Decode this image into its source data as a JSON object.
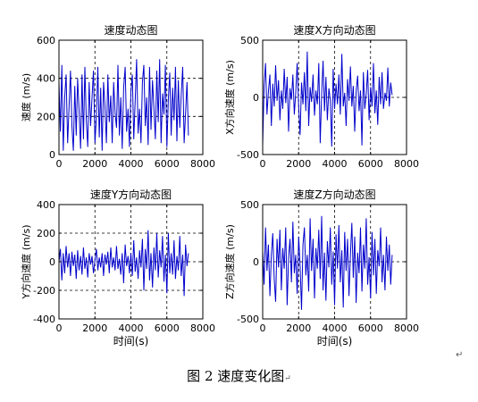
{
  "caption": "图 2  速度变化图",
  "caption_mark": "↵",
  "stray_mark": "↵",
  "chart_data": [
    {
      "type": "line",
      "title": "速度动态图",
      "xlabel": "",
      "ylabel": "速度 (m/s)",
      "xlim": [
        0,
        8000
      ],
      "ylim": [
        0,
        600
      ],
      "xticks": [
        0,
        2000,
        4000,
        6000,
        8000
      ],
      "yticks": [
        0,
        200,
        400,
        600
      ],
      "grid": true,
      "line_color": "#0000cc",
      "series": [
        {
          "x": [
            0,
            80,
            160,
            240,
            320,
            400,
            480,
            560,
            640,
            720,
            800,
            880,
            960,
            1040,
            1120,
            1200,
            1280,
            1360,
            1440,
            1520,
            1600,
            1680,
            1760,
            1840,
            1920,
            2000,
            2080,
            2160,
            2240,
            2320,
            2400,
            2480,
            2560,
            2640,
            2720,
            2800,
            2880,
            2960,
            3040,
            3120,
            3200,
            3280,
            3360,
            3440,
            3520,
            3600,
            3680,
            3760,
            3840,
            3920,
            4000,
            4080,
            4160,
            4240,
            4320,
            4400,
            4480,
            4560,
            4640,
            4720,
            4800,
            4880,
            4960,
            5040,
            5120,
            5200,
            5280,
            5360,
            5440,
            5520,
            5600,
            5680,
            5760,
            5840,
            5920,
            6000,
            6080,
            6160,
            6240,
            6320,
            6400,
            6480,
            6560,
            6640,
            6720,
            6800,
            6880,
            6960,
            7040,
            7120,
            7200
          ],
          "values": [
            380,
            120,
            470,
            20,
            300,
            420,
            60,
            250,
            440,
            150,
            20,
            360,
            100,
            400,
            230,
            30,
            420,
            80,
            460,
            180,
            40,
            380,
            150,
            300,
            440,
            60,
            200,
            460,
            90,
            350,
            20,
            380,
            250,
            60,
            420,
            170,
            310,
            60,
            380,
            220,
            140,
            470,
            100,
            300,
            30,
            350,
            460,
            120,
            240,
            40,
            330,
            420,
            80,
            280,
            500,
            110,
            240,
            60,
            380,
            470,
            150,
            300,
            50,
            460,
            130,
            390,
            240,
            80,
            440,
            170,
            500,
            60,
            320,
            210,
            470,
            40,
            290,
            430,
            100,
            350,
            180,
            460,
            70,
            390,
            140,
            310,
            460,
            60,
            220,
            380,
            100
          ]
        }
      ]
    },
    {
      "type": "line",
      "title": "速度X方向动态图",
      "xlabel": "",
      "ylabel": "X方向速度 (m/s)",
      "xlim": [
        0,
        8000
      ],
      "ylim": [
        -500,
        500
      ],
      "xticks": [
        0,
        2000,
        4000,
        6000,
        8000
      ],
      "yticks": [
        -500,
        0,
        500
      ],
      "grid": true,
      "line_color": "#0000cc",
      "series": [
        {
          "x": [
            0,
            80,
            160,
            240,
            320,
            400,
            480,
            560,
            640,
            720,
            800,
            880,
            960,
            1040,
            1120,
            1200,
            1280,
            1360,
            1440,
            1520,
            1600,
            1680,
            1760,
            1840,
            1920,
            2000,
            2080,
            2160,
            2240,
            2320,
            2400,
            2480,
            2560,
            2640,
            2720,
            2800,
            2880,
            2960,
            3040,
            3120,
            3200,
            3280,
            3360,
            3440,
            3520,
            3600,
            3680,
            3760,
            3840,
            3920,
            4000,
            4080,
            4160,
            4240,
            4320,
            4400,
            4480,
            4560,
            4640,
            4720,
            4800,
            4880,
            4960,
            5040,
            5120,
            5200,
            5280,
            5360,
            5440,
            5520,
            5600,
            5680,
            5760,
            5840,
            5920,
            6000,
            6080,
            6160,
            6240,
            6320,
            6400,
            6480,
            6560,
            6640,
            6720,
            6800,
            6880,
            6960,
            7040,
            7120,
            7200
          ],
          "values": [
            -420,
            100,
            300,
            -150,
            50,
            200,
            -250,
            120,
            -80,
            280,
            -30,
            150,
            -200,
            60,
            -100,
            250,
            -50,
            180,
            -300,
            80,
            -20,
            200,
            -150,
            40,
            300,
            -80,
            -330,
            130,
            -60,
            220,
            -120,
            400,
            -250,
            90,
            -40,
            200,
            -160,
            60,
            -60,
            300,
            -400,
            30,
            320,
            -120,
            180,
            -200,
            80,
            -20,
            -430,
            250,
            -100,
            120,
            -60,
            200,
            -150,
            380,
            -80,
            40,
            -250,
            160,
            -30,
            270,
            -80,
            100,
            -300,
            50,
            190,
            -120,
            60,
            -420,
            220,
            -100,
            30,
            240,
            -200,
            90,
            -80,
            300,
            -140,
            60,
            -240,
            180,
            -60,
            220,
            -100,
            40,
            -30,
            260,
            -80,
            130,
            20
          ]
        }
      ]
    },
    {
      "type": "line",
      "title": "速度Y方向动态图",
      "xlabel": "时间(s)",
      "ylabel": "Y方向速度 (m/s)",
      "xlim": [
        0,
        8000
      ],
      "ylim": [
        -400,
        400
      ],
      "xticks": [
        0,
        2000,
        4000,
        6000,
        8000
      ],
      "yticks": [
        -400,
        -200,
        0,
        200,
        400
      ],
      "grid": true,
      "line_color": "#0000cc",
      "series": [
        {
          "x": [
            0,
            80,
            160,
            240,
            320,
            400,
            480,
            560,
            640,
            720,
            800,
            880,
            960,
            1040,
            1120,
            1200,
            1280,
            1360,
            1440,
            1520,
            1600,
            1680,
            1760,
            1840,
            1920,
            2000,
            2080,
            2160,
            2240,
            2320,
            2400,
            2480,
            2560,
            2640,
            2720,
            2800,
            2880,
            2960,
            3040,
            3120,
            3200,
            3280,
            3360,
            3440,
            3520,
            3600,
            3680,
            3760,
            3840,
            3920,
            4000,
            4080,
            4160,
            4240,
            4320,
            4400,
            4480,
            4560,
            4640,
            4720,
            4800,
            4880,
            4960,
            5040,
            5120,
            5200,
            5280,
            5360,
            5440,
            5520,
            5600,
            5680,
            5760,
            5840,
            5920,
            6000,
            6080,
            6160,
            6240,
            6320,
            6400,
            6480,
            6560,
            6640,
            6720,
            6800,
            6880,
            6960,
            7040,
            7120,
            7200
          ],
          "values": [
            0,
            90,
            -130,
            60,
            -80,
            110,
            -40,
            60,
            -100,
            70,
            -30,
            50,
            -120,
            80,
            -60,
            40,
            -90,
            100,
            -50,
            30,
            -110,
            60,
            -20,
            40,
            -80,
            10,
            90,
            -60,
            30,
            -40,
            60,
            -100,
            50,
            -20,
            70,
            -80,
            100,
            -40,
            30,
            -60,
            110,
            -50,
            20,
            -90,
            60,
            -150,
            120,
            -30,
            40,
            -80,
            60,
            -100,
            150,
            -70,
            30,
            -120,
            80,
            -40,
            160,
            -200,
            90,
            -50,
            220,
            -130,
            60,
            -180,
            100,
            -60,
            200,
            -110,
            80,
            -40,
            180,
            -140,
            50,
            -220,
            200,
            -80,
            60,
            -90,
            150,
            -120,
            40,
            -60,
            180,
            -100,
            50,
            -240,
            120,
            -30,
            60
          ]
        }
      ]
    },
    {
      "type": "line",
      "title": "速度Z方向动态图",
      "xlabel": "时间(s)",
      "ylabel": "Z方向速度 (m/s)",
      "xlim": [
        0,
        8000
      ],
      "ylim": [
        -500,
        500
      ],
      "xticks": [
        0,
        2000,
        4000,
        6000,
        8000
      ],
      "yticks": [
        -500,
        0,
        500
      ],
      "grid": true,
      "line_color": "#0000cc",
      "series": [
        {
          "x": [
            0,
            80,
            160,
            240,
            320,
            400,
            480,
            560,
            640,
            720,
            800,
            880,
            960,
            1040,
            1120,
            1200,
            1280,
            1360,
            1440,
            1520,
            1600,
            1680,
            1760,
            1840,
            1920,
            2000,
            2080,
            2160,
            2240,
            2320,
            2400,
            2480,
            2560,
            2640,
            2720,
            2800,
            2880,
            2960,
            3040,
            3120,
            3200,
            3280,
            3360,
            3440,
            3520,
            3600,
            3680,
            3760,
            3840,
            3920,
            4000,
            4080,
            4160,
            4240,
            4320,
            4400,
            4480,
            4560,
            4640,
            4720,
            4800,
            4880,
            4960,
            5040,
            5120,
            5200,
            5280,
            5360,
            5440,
            5520,
            5600,
            5680,
            5760,
            5840,
            5920,
            6000,
            6080,
            6160,
            6240,
            6320,
            6400,
            6480,
            6560,
            6640,
            6720,
            6800,
            6880,
            6960,
            7040,
            7120,
            7200
          ],
          "values": [
            100,
            -200,
            300,
            -80,
            150,
            -300,
            60,
            250,
            -150,
            -350,
            200,
            -50,
            280,
            -250,
            120,
            -60,
            300,
            -380,
            40,
            200,
            -180,
            350,
            -100,
            60,
            -280,
            220,
            -40,
            -420,
            150,
            300,
            -120,
            60,
            -260,
            380,
            -80,
            200,
            -320,
            120,
            -60,
            280,
            -150,
            400,
            -250,
            80,
            -340,
            180,
            -50,
            300,
            -200,
            90,
            -380,
            240,
            -60,
            320,
            -180,
            100,
            -400,
            260,
            -80,
            200,
            -300,
            60,
            340,
            -140,
            220,
            -360,
            80,
            -100,
            300,
            -260,
            150,
            -60,
            380,
            -200,
            40,
            -320,
            260,
            -120,
            200,
            -280,
            100,
            -40,
            300,
            -180,
            60,
            -250,
            220,
            -80,
            150,
            -200,
            60
          ]
        }
      ]
    }
  ]
}
